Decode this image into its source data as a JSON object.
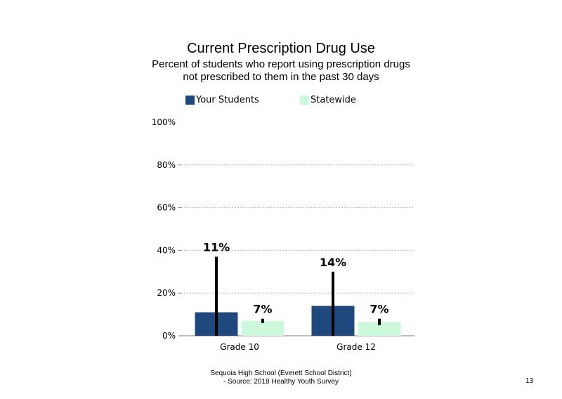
{
  "chart_data": {
    "type": "bar",
    "title": "Current Prescription Drug Use",
    "subtitle_lines": [
      "Percent of students who report using prescription drugs",
      "not prescribed to them in the past 30 days"
    ],
    "categories": [
      "Grade 10",
      "Grade 12"
    ],
    "series": [
      {
        "name": "Your Students",
        "color": "#1f497d",
        "values": [
          11,
          14
        ],
        "data_labels": [
          "11%",
          "14%"
        ],
        "ci_upper": [
          37,
          30
        ]
      },
      {
        "name": "Statewide",
        "color": "#ccf9dc",
        "values": [
          7,
          6.5
        ],
        "data_labels": [
          "7%",
          "7%"
        ],
        "ci_upper": [
          8,
          8
        ]
      }
    ],
    "yticks": [
      "100%",
      "80%",
      "60%",
      "40%",
      "20%",
      "0%"
    ],
    "ylim": [
      0,
      100
    ],
    "grid": true,
    "legend": "top"
  },
  "footer": {
    "line1": "Sequoia High School (Everett School District)",
    "line2": "- Source: 2018 Healthy Youth Survey",
    "page_number": "13"
  }
}
